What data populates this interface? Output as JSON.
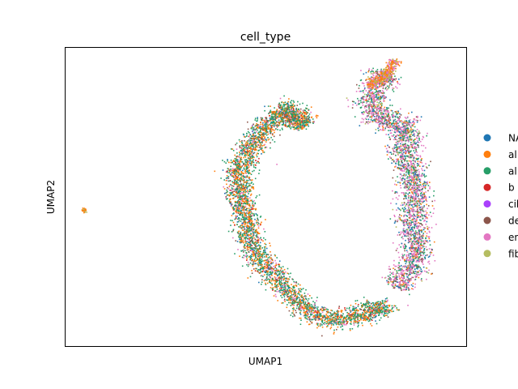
{
  "chart_data": {
    "type": "scatter",
    "title": "cell_type",
    "xlabel": "UMAP1",
    "ylabel": "UMAP2",
    "xticks": [],
    "yticks": [],
    "grid": false,
    "legend_placement": "right, clipped by figure edge",
    "legend": [
      {
        "label": "NA",
        "color": "#1f77b4"
      },
      {
        "label": "al",
        "color": "#ff7f0e"
      },
      {
        "label": "al",
        "color": "#279e68"
      },
      {
        "label": "b",
        "color": "#d62728"
      },
      {
        "label": "cil",
        "color": "#aa40fc"
      },
      {
        "label": "de",
        "color": "#8c564b"
      },
      {
        "label": "en",
        "color": "#e377c2"
      },
      {
        "label": "fib",
        "color": "#b5bd61"
      }
    ],
    "clusters": [
      {
        "name": "left-arc",
        "mix": {
          "#279e68": 0.42,
          "#ff7f0e": 0.3,
          "#8c564b": 0.1,
          "#e377c2": 0.08,
          "#1f77b4": 0.06,
          "#d62728": 0.04
        },
        "path": [
          [
            0.53,
            0.2
          ],
          [
            0.56,
            0.21
          ],
          [
            0.59,
            0.24
          ],
          [
            0.6,
            0.26
          ],
          [
            0.57,
            0.23
          ],
          [
            0.54,
            0.22
          ],
          [
            0.51,
            0.24
          ],
          [
            0.48,
            0.29
          ],
          [
            0.45,
            0.36
          ],
          [
            0.43,
            0.4
          ],
          [
            0.43,
            0.45
          ],
          [
            0.44,
            0.52
          ],
          [
            0.45,
            0.58
          ],
          [
            0.46,
            0.65
          ],
          [
            0.49,
            0.72
          ],
          [
            0.53,
            0.78
          ],
          [
            0.57,
            0.83
          ],
          [
            0.6,
            0.88
          ],
          [
            0.63,
            0.9
          ],
          [
            0.68,
            0.91
          ],
          [
            0.73,
            0.9
          ],
          [
            0.77,
            0.86
          ],
          [
            0.79,
            0.87
          ],
          [
            0.8,
            0.89
          ]
        ],
        "width": 0.03
      },
      {
        "name": "right-arc",
        "mix": {
          "#e377c2": 0.4,
          "#279e68": 0.22,
          "#8c564b": 0.12,
          "#1f77b4": 0.12,
          "#ff7f0e": 0.08,
          "#b5bd61": 0.06
        },
        "path": [
          [
            0.8,
            0.08
          ],
          [
            0.78,
            0.12
          ],
          [
            0.76,
            0.16
          ],
          [
            0.76,
            0.2
          ],
          [
            0.78,
            0.24
          ],
          [
            0.83,
            0.25
          ],
          [
            0.86,
            0.27
          ],
          [
            0.84,
            0.32
          ],
          [
            0.85,
            0.38
          ],
          [
            0.87,
            0.44
          ],
          [
            0.87,
            0.52
          ],
          [
            0.86,
            0.6
          ],
          [
            0.88,
            0.66
          ],
          [
            0.87,
            0.72
          ],
          [
            0.84,
            0.77
          ],
          [
            0.82,
            0.8
          ]
        ],
        "width": 0.035
      },
      {
        "name": "top-spike",
        "mix": {
          "#ff7f0e": 0.5,
          "#e377c2": 0.3,
          "#b5bd61": 0.2
        },
        "path": [
          [
            0.82,
            0.04
          ],
          [
            0.8,
            0.09
          ],
          [
            0.77,
            0.12
          ],
          [
            0.75,
            0.12
          ]
        ],
        "width": 0.012
      },
      {
        "name": "outlier",
        "mix": {
          "#ff7f0e": 0.7,
          "#b5bd61": 0.3
        },
        "path": [
          [
            0.045,
            0.54
          ],
          [
            0.046,
            0.545
          ]
        ],
        "width": 0.002
      }
    ]
  },
  "colors": {
    "NA": "#1f77b4",
    "orange": "#ff7f0e",
    "green": "#279e68",
    "red": "#d62728",
    "purple": "#aa40fc",
    "brown": "#8c564b",
    "pink": "#e377c2",
    "olive": "#b5bd61"
  }
}
